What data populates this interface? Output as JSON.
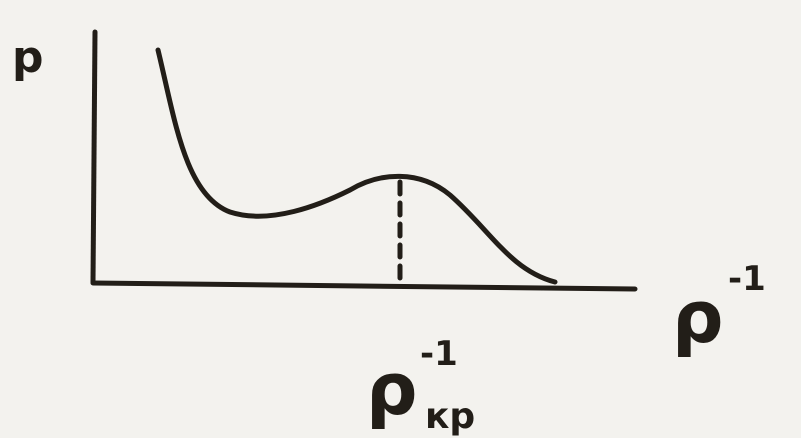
{
  "y_axis": {
    "label": "p"
  },
  "x_axis": {
    "label": "ρ",
    "superscript": "-1"
  },
  "critical_point": {
    "label": "ρ",
    "subscript": "кр",
    "superscript": "-1"
  }
}
